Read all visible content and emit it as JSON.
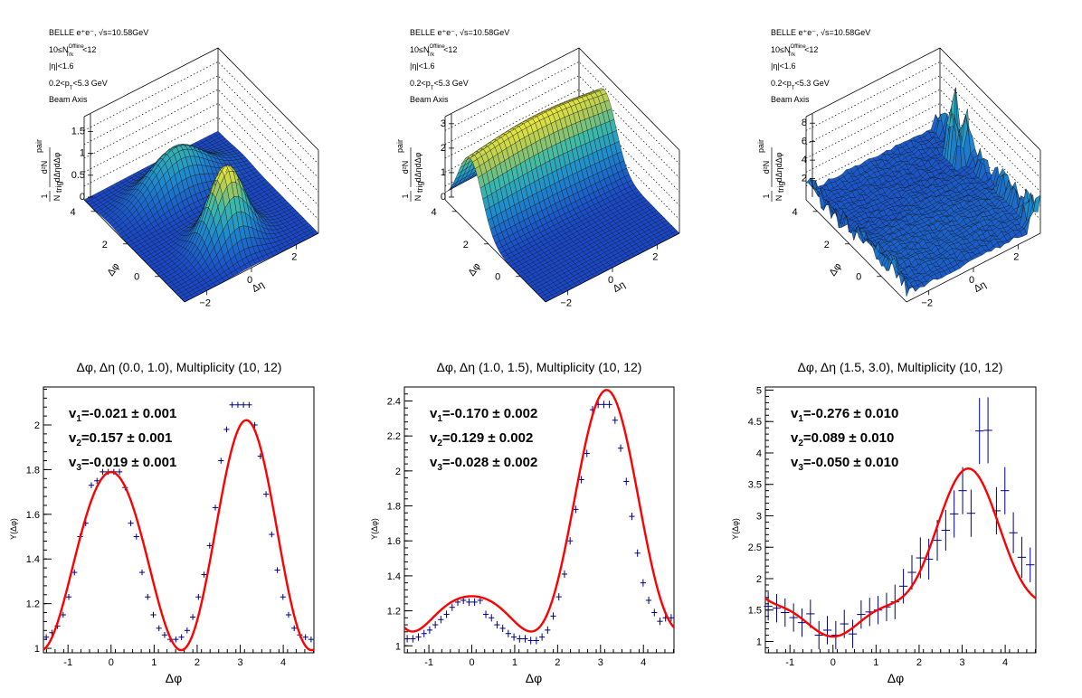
{
  "colors": {
    "surface_low": "#1a47c8",
    "surface_mid": "#2aa7c0",
    "surface_high": "#f6ec3a",
    "fit": "#ff0000",
    "points": "#00007f"
  },
  "surface_panels": [
    {
      "info": [
        "BELLE e⁺e⁻, √s=10.58GeV",
        "10≤N",
        "Offline",
        "Trk",
        "<12",
        "|η|<1.6",
        "0.2<p",
        "T",
        "<5.3 GeV",
        "Beam Axis"
      ],
      "z_label_num": "d²N",
      "z_label_sup": "pair",
      "z_label_den": "dΔηdΔφ",
      "z_label_pre": "1",
      "z_label_pre_den": "N",
      "z_label_pre_sub": "trig",
      "z_ticks": [
        "0",
        "0.5",
        "1",
        "1.5"
      ],
      "z_max": 1.9,
      "dphi_ticks": [
        "0",
        "2",
        "4"
      ],
      "deta_ticks": [
        "−2",
        "0",
        "2"
      ],
      "dphi_label": "Δφ",
      "deta_label": "Δη",
      "shape": "double"
    },
    {
      "info": [
        "BELLE e⁺e⁻, √s=10.58GeV",
        "10≤N",
        "Offline",
        "Trk",
        "<12",
        "|η|<1.6",
        "0.2<p",
        "T",
        "<5.3 GeV",
        "Beam Axis"
      ],
      "z_label_num": "d²N",
      "z_label_sup": "pair",
      "z_label_den": "dΔηdΔφ",
      "z_label_pre": "1",
      "z_label_pre_den": "N",
      "z_label_pre_sub": "trig",
      "z_ticks": [
        "0",
        "1",
        "2",
        "3"
      ],
      "z_max": 3.4,
      "dphi_ticks": [
        "0",
        "2",
        "4"
      ],
      "deta_ticks": [
        "−2",
        "0",
        "2"
      ],
      "dphi_label": "Δφ",
      "deta_label": "Δη",
      "shape": "ridge"
    },
    {
      "info": [
        "BELLE e⁺e⁻, √s=10.58GeV",
        "10≤N",
        "Offline",
        "Trk",
        "<12",
        "|η|<1.6",
        "0.2<p",
        "T",
        "<5.3 GeV",
        "Beam Axis"
      ],
      "z_label_num": "d²N",
      "z_label_sup": "pair",
      "z_label_den": "dΔηdΔφ",
      "z_label_pre": "1",
      "z_label_pre_den": "N",
      "z_label_pre_sub": "trig",
      "z_ticks": [
        "2",
        "4",
        "6",
        "8"
      ],
      "z_max": 9.0,
      "dphi_ticks": [
        "0",
        "2",
        "4"
      ],
      "deta_ticks": [
        "−2",
        "0",
        "2"
      ],
      "dphi_label": "Δφ",
      "deta_label": "Δη",
      "shape": "noisy"
    }
  ],
  "chart_data": [
    {
      "type": "scatter",
      "title": "Δφ, Δη (0.0, 1.0), Multiplicity (10, 12)",
      "xlabel": "Δφ",
      "ylabel": "Y(Δφ)",
      "xlim": [
        -1.571,
        4.712
      ],
      "ylim": [
        0.98,
        2.17
      ],
      "xticks": [
        -1,
        0,
        1,
        2,
        3,
        4
      ],
      "yticks": [
        1,
        1.2,
        1.4,
        1.6,
        1.8,
        2
      ],
      "ytick_labels": [
        "1",
        "1.2",
        "1.4",
        "1.6",
        "1.8",
        "2"
      ],
      "fit": {
        "a0": 1.45,
        "v1": -0.021,
        "v2": 0.157,
        "v3": -0.019
      },
      "v_labels": [
        {
          "sub": "1",
          "text": "=-0.021 ± 0.001"
        },
        {
          "sub": "2",
          "text": "=0.157 ± 0.001"
        },
        {
          "sub": "3",
          "text": "=-0.019 ± 0.001"
        }
      ],
      "x": [
        -1.505,
        -1.374,
        -1.244,
        -1.113,
        -0.982,
        -0.851,
        -0.72,
        -0.589,
        -0.458,
        -0.327,
        -0.196,
        -0.065,
        0.065,
        0.196,
        0.327,
        0.458,
        0.589,
        0.72,
        0.851,
        0.982,
        1.113,
        1.244,
        1.374,
        1.505,
        1.636,
        1.767,
        1.898,
        2.029,
        2.16,
        2.291,
        2.422,
        2.553,
        2.683,
        2.814,
        2.945,
        3.076,
        3.207,
        3.338,
        3.469,
        3.6,
        3.731,
        3.862,
        3.993,
        4.123,
        4.254,
        4.385,
        4.516,
        4.647
      ],
      "y": [
        1.05,
        1.07,
        1.1,
        1.15,
        1.23,
        1.34,
        1.5,
        1.56,
        1.73,
        1.75,
        1.79,
        1.79,
        1.79,
        1.79,
        1.72,
        1.56,
        1.5,
        1.34,
        1.23,
        1.15,
        1.09,
        1.06,
        1.04,
        1.04,
        1.05,
        1.08,
        1.14,
        1.23,
        1.33,
        1.46,
        1.63,
        1.84,
        1.98,
        2.09,
        2.09,
        2.09,
        2.09,
        2.0,
        1.86,
        1.69,
        1.51,
        1.35,
        1.23,
        1.15,
        1.09,
        1.06,
        1.05,
        1.04
      ],
      "yerr": 0.006
    },
    {
      "type": "scatter",
      "title": "Δφ, Δη (1.0, 1.5), Multiplicity (10, 12)",
      "xlabel": "Δφ",
      "ylabel": "Y(Δφ)",
      "xlim": [
        -1.571,
        4.712
      ],
      "ylim": [
        0.96,
        2.48
      ],
      "xticks": [
        -1,
        0,
        1,
        2,
        3,
        4
      ],
      "yticks": [
        1,
        1.2,
        1.4,
        1.6,
        1.8,
        2,
        2.2,
        2.4
      ],
      "ytick_labels": [
        "1",
        "1.2",
        "1.4",
        "1.6",
        "1.8",
        "2",
        "2.2",
        "2.4"
      ],
      "fit": {
        "a0": 1.489,
        "v1": -0.17,
        "v2": 0.129,
        "v3": -0.028
      },
      "v_labels": [
        {
          "sub": "1",
          "text": "=-0.170 ± 0.002"
        },
        {
          "sub": "2",
          "text": "=0.129 ± 0.002"
        },
        {
          "sub": "3",
          "text": "=-0.028 ± 0.002"
        }
      ],
      "x": [
        -1.505,
        -1.374,
        -1.244,
        -1.113,
        -0.982,
        -0.851,
        -0.72,
        -0.589,
        -0.458,
        -0.327,
        -0.196,
        -0.065,
        0.065,
        0.196,
        0.327,
        0.458,
        0.589,
        0.72,
        0.851,
        0.982,
        1.113,
        1.244,
        1.374,
        1.505,
        1.636,
        1.767,
        1.898,
        2.029,
        2.16,
        2.291,
        2.422,
        2.553,
        2.683,
        2.814,
        2.945,
        3.076,
        3.207,
        3.338,
        3.469,
        3.6,
        3.731,
        3.862,
        3.993,
        4.123,
        4.254,
        4.385,
        4.516,
        4.647
      ],
      "y": [
        1.04,
        1.04,
        1.05,
        1.07,
        1.09,
        1.12,
        1.15,
        1.18,
        1.22,
        1.25,
        1.26,
        1.25,
        1.25,
        1.26,
        1.18,
        1.16,
        1.12,
        1.1,
        1.07,
        1.05,
        1.04,
        1.04,
        1.03,
        1.03,
        1.05,
        1.09,
        1.17,
        1.28,
        1.41,
        1.6,
        1.78,
        1.95,
        2.1,
        2.35,
        2.38,
        2.38,
        2.38,
        2.29,
        2.13,
        1.94,
        1.74,
        1.53,
        1.36,
        1.26,
        1.19,
        1.14,
        1.16,
        1.16
      ],
      "yerr": 0.012
    },
    {
      "type": "scatter",
      "title": "Δφ, Δη (1.5, 3.0), Multiplicity (10, 12)",
      "xlabel": "Δφ",
      "ylabel": "Y(Δφ)",
      "xlim": [
        -1.571,
        4.712
      ],
      "ylim": [
        0.82,
        5.05
      ],
      "xticks": [
        -1,
        0,
        1,
        2,
        3,
        4
      ],
      "yticks": [
        1,
        1.5,
        2,
        2.5,
        3,
        3.5,
        4,
        4.5,
        5
      ],
      "ytick_labels": [
        "1",
        "1.5",
        "2",
        "2.5",
        "3",
        "3.5",
        "4",
        "4.5",
        "5"
      ],
      "fit": {
        "a0": 2.05,
        "v1": -0.276,
        "v2": 0.089,
        "v3": -0.05
      },
      "v_labels": [
        {
          "sub": "1",
          "text": "=-0.276 ± 0.010"
        },
        {
          "sub": "2",
          "text": "=0.089 ± 0.010"
        },
        {
          "sub": "3",
          "text": "=-0.050 ± 0.010"
        }
      ],
      "x": [
        -1.505,
        -1.309,
        -1.113,
        -0.916,
        -0.72,
        -0.524,
        -0.327,
        -0.131,
        0.065,
        0.262,
        0.458,
        0.654,
        0.851,
        1.047,
        1.244,
        1.44,
        1.636,
        1.833,
        2.029,
        2.225,
        2.422,
        2.618,
        2.814,
        3.011,
        3.207,
        3.403,
        3.6,
        3.796,
        3.993,
        4.189,
        4.385,
        4.581
      ],
      "y": [
        1.56,
        1.53,
        1.46,
        1.38,
        1.3,
        1.44,
        1.1,
        1.18,
        1.1,
        1.28,
        1.12,
        1.43,
        1.47,
        1.5,
        1.55,
        1.63,
        1.88,
        2.1,
        2.33,
        2.31,
        2.61,
        2.77,
        3.03,
        3.4,
        3.04,
        4.35,
        4.36,
        3.08,
        3.4,
        2.73,
        2.34,
        2.22
      ],
      "yerr": [
        0.2,
        0.2,
        0.2,
        0.2,
        0.2,
        0.2,
        0.2,
        0.2,
        0.2,
        0.2,
        0.2,
        0.2,
        0.2,
        0.2,
        0.2,
        0.25,
        0.25,
        0.25,
        0.3,
        0.3,
        0.3,
        0.3,
        0.35,
        0.35,
        0.35,
        0.5,
        0.5,
        0.35,
        0.35,
        0.3,
        0.3,
        0.25
      ]
    }
  ]
}
